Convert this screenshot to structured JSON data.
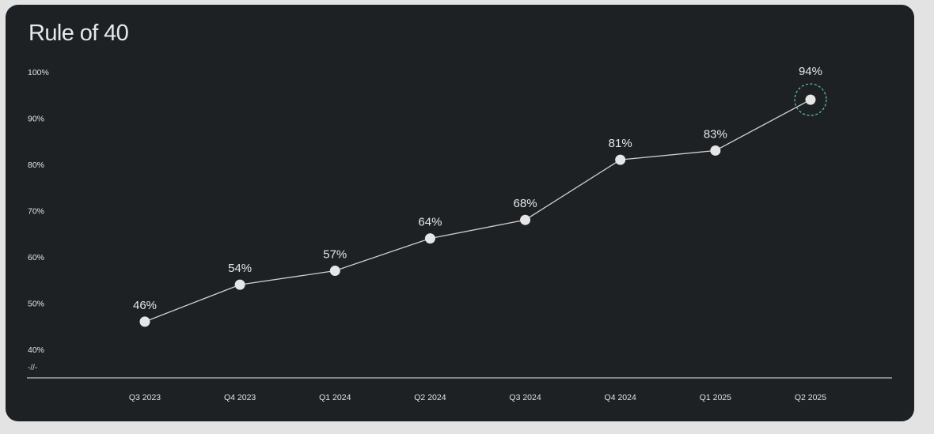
{
  "colors": {
    "page_background": "#e3e3e3",
    "card_background": "#1e2124",
    "line": "#cfcfcf",
    "point": "#e6e6e6",
    "text": "#e2e2e2",
    "highlight_ring": "#5fc9a8"
  },
  "chart_data": {
    "type": "line",
    "title": "Rule of 40",
    "xlabel": "",
    "ylabel": "",
    "categories": [
      "Q3 2023",
      "Q4 2023",
      "Q1 2024",
      "Q2 2024",
      "Q3 2024",
      "Q4 2024",
      "Q1 2025",
      "Q2 2025"
    ],
    "series": [
      {
        "values": [
          46,
          54,
          57,
          64,
          68,
          81,
          83,
          94
        ],
        "data_labels": [
          "46%",
          "54%",
          "57%",
          "64%",
          "68%",
          "81%",
          "83%",
          "94%"
        ]
      }
    ],
    "y_ticks": [
      40,
      50,
      60,
      70,
      80,
      90,
      100
    ],
    "y_tick_labels": [
      "40%",
      "50%",
      "60%",
      "70%",
      "80%",
      "90%",
      "100%"
    ],
    "ylim": [
      40,
      100
    ],
    "axis_break_mark": "-//-",
    "highlighted_point": "Q2 2025",
    "grid": false,
    "legend": "none"
  }
}
